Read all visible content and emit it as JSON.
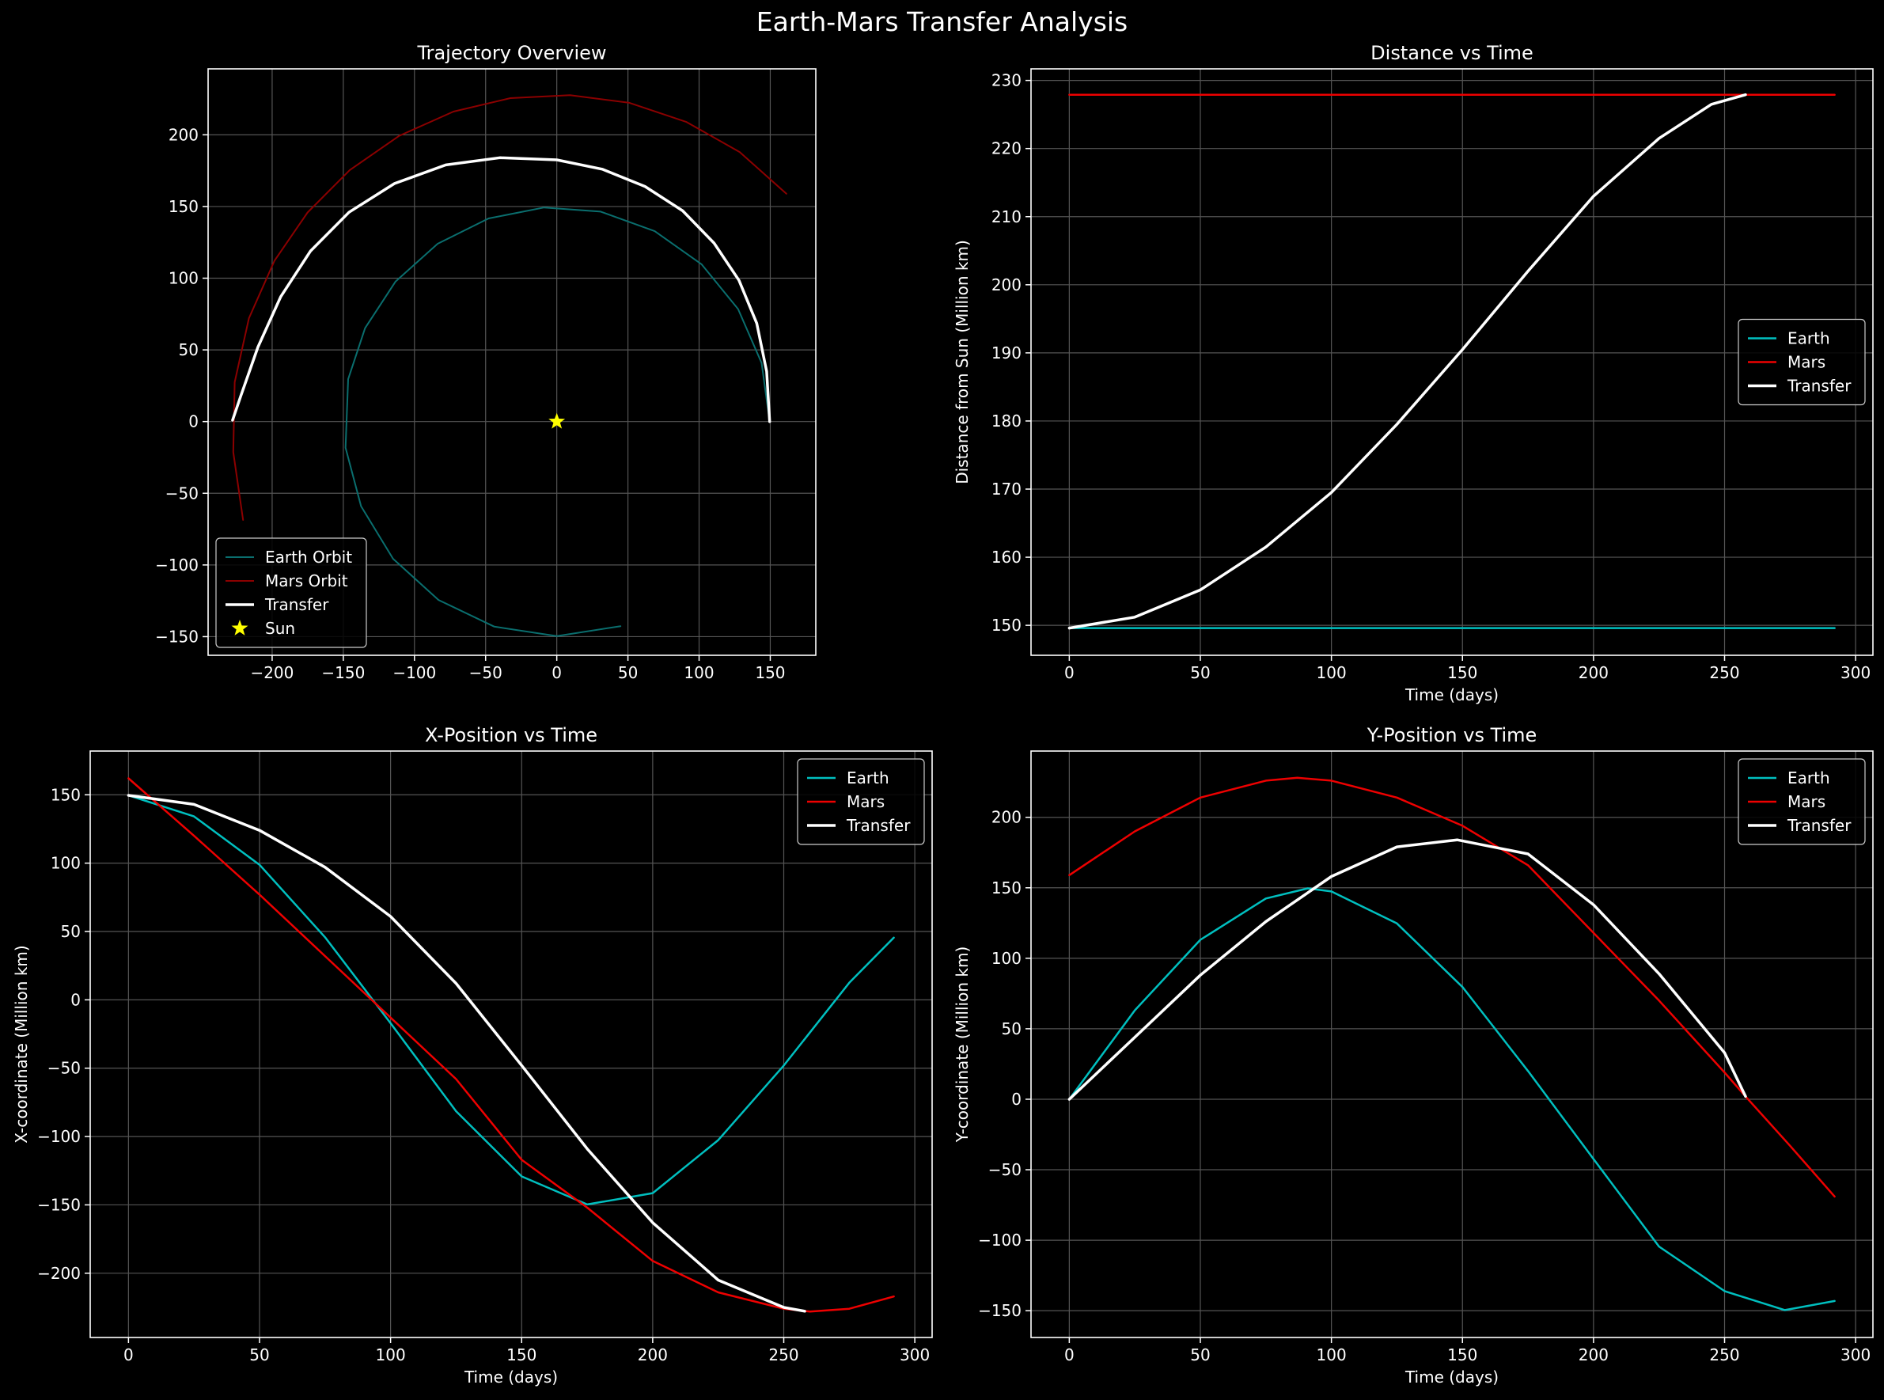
{
  "figure_title": "Earth-Mars Transfer Analysis",
  "colors": {
    "background": "#000000",
    "earth": "#00bfbf",
    "mars": "#ee0000",
    "transfer": "#ffffff",
    "sun": "#ffff00",
    "grid": "#555555"
  },
  "chart_data": [
    {
      "id": "trajectory",
      "type": "line",
      "title": "Trajectory Overview",
      "xlabel": "",
      "ylabel": "",
      "xlim": [
        -245,
        182
      ],
      "ylim": [
        -163,
        246
      ],
      "xticks": [
        -200,
        -150,
        -100,
        -50,
        0,
        50,
        100,
        150
      ],
      "yticks": [
        -150,
        -100,
        -50,
        0,
        50,
        100,
        150,
        200
      ],
      "grid": true,
      "legend_position": "lower-left",
      "series": [
        {
          "name": "Earth Orbit",
          "color": "#0a6e6e",
          "width": 2,
          "points": [
            [
              149.6,
              0
            ],
            [
              143.9,
              40.9
            ],
            [
              127.4,
              78.5
            ],
            [
              101.8,
              109.6
            ],
            [
              68.8,
              132.8
            ],
            [
              30.8,
              146.4
            ],
            [
              -8.9,
              149.3
            ],
            [
              -47.9,
              141.7
            ],
            [
              -83.7,
              124.0
            ],
            [
              -113.3,
              97.7
            ],
            [
              -134.7,
              65.2
            ],
            [
              -146.6,
              29.6
            ],
            [
              -148.4,
              -18.2
            ],
            [
              -137.5,
              -59.0
            ],
            [
              -115.0,
              -95.7
            ],
            [
              -83.1,
              -124.4
            ],
            [
              -43.9,
              -143.0
            ],
            [
              0,
              -149.6
            ],
            [
              44.8,
              -142.7
            ]
          ]
        },
        {
          "name": "Mars Orbit",
          "color": "#8b0000",
          "width": 2,
          "points": [
            [
              161.3,
              158.9
            ],
            [
              128.5,
              188.0
            ],
            [
              91.2,
              208.9
            ],
            [
              51.0,
              222.3
            ],
            [
              9.3,
              227.7
            ],
            [
              -32.6,
              225.6
            ],
            [
              -72.6,
              216.2
            ],
            [
              -110.7,
              199.3
            ],
            [
              -145.5,
              175.4
            ],
            [
              -175.1,
              145.8
            ],
            [
              -198.4,
              112.1
            ],
            [
              -216.3,
              72.1
            ],
            [
              -226.3,
              27.5
            ],
            [
              -227.3,
              -21.3
            ],
            [
              -220.4,
              -68.6
            ]
          ]
        },
        {
          "name": "Transfer",
          "color": "#ffffff",
          "width": 3.5,
          "points": [
            [
              149.6,
              0
            ],
            [
              147.5,
              35.0
            ],
            [
              140.5,
              68.5
            ],
            [
              128.0,
              98.5
            ],
            [
              110.5,
              124.5
            ],
            [
              88.5,
              147.0
            ],
            [
              62.0,
              164.0
            ],
            [
              32.0,
              176.0
            ],
            [
              0,
              182.5
            ],
            [
              -40.0,
              184.0
            ],
            [
              -78.0,
              179.0
            ],
            [
              -114.0,
              166.0
            ],
            [
              -146.0,
              146.0
            ],
            [
              -173.0,
              119.0
            ],
            [
              -194.0,
              87.0
            ],
            [
              -210.0,
              52.0
            ],
            [
              -222.0,
              18.0
            ],
            [
              -227.8,
              1.0
            ]
          ]
        },
        {
          "name": "Sun",
          "type": "marker",
          "color": "#ffff00",
          "points": [
            [
              0,
              0
            ]
          ]
        }
      ]
    },
    {
      "id": "distance",
      "type": "line",
      "title": "Distance vs Time",
      "xlabel": "Time (days)",
      "ylabel": "Distance from Sun (Million km)",
      "xlim": [
        -14.6,
        306.6
      ],
      "ylim": [
        145.6,
        231.7
      ],
      "xticks": [
        0,
        50,
        100,
        150,
        200,
        250,
        300
      ],
      "yticks": [
        150,
        160,
        170,
        180,
        190,
        200,
        210,
        220,
        230
      ],
      "grid": true,
      "legend_position": "center-right",
      "series": [
        {
          "name": "Earth",
          "color": "#00bfbf",
          "width": 2.5,
          "points": [
            [
              0,
              149.6
            ],
            [
              292,
              149.6
            ]
          ]
        },
        {
          "name": "Mars",
          "color": "#ee0000",
          "width": 2.5,
          "points": [
            [
              0,
              227.9
            ],
            [
              292,
              227.9
            ]
          ]
        },
        {
          "name": "Transfer",
          "color": "#ffffff",
          "width": 3.5,
          "points": [
            [
              0,
              149.6
            ],
            [
              25,
              151.2
            ],
            [
              50,
              155.2
            ],
            [
              75,
              161.5
            ],
            [
              100,
              169.5
            ],
            [
              125,
              179.5
            ],
            [
              150,
              190.5
            ],
            [
              175,
              202.0
            ],
            [
              200,
              213.0
            ],
            [
              225,
              221.5
            ],
            [
              245,
              226.5
            ],
            [
              258,
              227.9
            ]
          ]
        }
      ]
    },
    {
      "id": "x_position",
      "type": "line",
      "title": "X-Position vs Time",
      "xlabel": "Time (days)",
      "ylabel": "X-coordinate (Million km)",
      "xlim": [
        -14.6,
        306.6
      ],
      "ylim": [
        -247,
        182
      ],
      "xticks": [
        0,
        50,
        100,
        150,
        200,
        250,
        300
      ],
      "yticks": [
        -200,
        -150,
        -100,
        -50,
        0,
        50,
        100,
        150
      ],
      "grid": true,
      "legend_position": "top-right",
      "series": [
        {
          "name": "Earth",
          "color": "#00bfbf",
          "width": 2.5,
          "points": [
            [
              0,
              149.6
            ],
            [
              25,
              134.2
            ],
            [
              50,
              98.8
            ],
            [
              75,
              45.8
            ],
            [
              100,
              -17.1
            ],
            [
              125,
              -81.5
            ],
            [
              150,
              -129.2
            ],
            [
              175,
              -149.7
            ],
            [
              200,
              -141.4
            ],
            [
              225,
              -102.6
            ],
            [
              250,
              -48.1
            ],
            [
              275,
              12.5
            ],
            [
              292,
              45.5
            ]
          ]
        },
        {
          "name": "Mars",
          "color": "#ee0000",
          "width": 2.5,
          "points": [
            [
              0,
              162
            ],
            [
              25,
              120
            ],
            [
              50,
              77
            ],
            [
              75,
              32
            ],
            [
              100,
              -13
            ],
            [
              125,
              -58
            ],
            [
              150,
              -117
            ],
            [
              175,
              -152
            ],
            [
              200,
              -191
            ],
            [
              225,
              -214
            ],
            [
              250,
              -226
            ],
            [
              260,
              -228
            ],
            [
              275,
              -226
            ],
            [
              292,
              -217
            ]
          ]
        },
        {
          "name": "Transfer",
          "color": "#ffffff",
          "width": 3.5,
          "points": [
            [
              0,
              149.6
            ],
            [
              25,
              143
            ],
            [
              50,
              124
            ],
            [
              75,
              97
            ],
            [
              100,
              61
            ],
            [
              125,
              12
            ],
            [
              150,
              -48
            ],
            [
              175,
              -109
            ],
            [
              200,
              -163
            ],
            [
              225,
              -205
            ],
            [
              250,
              -225
            ],
            [
              258,
              -227.8
            ]
          ]
        }
      ]
    },
    {
      "id": "y_position",
      "type": "line",
      "title": "Y-Position vs Time",
      "xlabel": "Time (days)",
      "ylabel": "Y-coordinate (Million km)",
      "xlim": [
        -14.6,
        306.6
      ],
      "ylim": [
        -169,
        247
      ],
      "xticks": [
        0,
        50,
        100,
        150,
        200,
        250,
        300
      ],
      "yticks": [
        -150,
        -100,
        -50,
        0,
        50,
        100,
        150,
        200
      ],
      "grid": true,
      "legend_position": "top-right",
      "series": [
        {
          "name": "Earth",
          "color": "#00bfbf",
          "width": 2.5,
          "points": [
            [
              0,
              0
            ],
            [
              25,
              63.1
            ],
            [
              50,
              113.1
            ],
            [
              75,
              142.4
            ],
            [
              91,
              149.6
            ],
            [
              100,
              147.4
            ],
            [
              125,
              124.7
            ],
            [
              150,
              79.6
            ],
            [
              175,
              20.0
            ],
            [
              200,
              -42.4
            ],
            [
              225,
              -104.5
            ],
            [
              250,
              -136.1
            ],
            [
              273,
              -149.6
            ],
            [
              292,
              -143.1
            ]
          ]
        },
        {
          "name": "Mars",
          "color": "#ee0000",
          "width": 2.5,
          "points": [
            [
              0,
              159
            ],
            [
              25,
              190
            ],
            [
              50,
              214
            ],
            [
              75,
              226
            ],
            [
              87,
              228
            ],
            [
              100,
              226
            ],
            [
              125,
              214
            ],
            [
              150,
              194
            ],
            [
              175,
              166
            ],
            [
              200,
              118
            ],
            [
              225,
              70
            ],
            [
              250,
              19
            ],
            [
              258,
              2
            ],
            [
              275,
              -33
            ],
            [
              292,
              -69
            ]
          ]
        },
        {
          "name": "Transfer",
          "color": "#ffffff",
          "width": 3.5,
          "points": [
            [
              0,
              0
            ],
            [
              25,
              44
            ],
            [
              50,
              88
            ],
            [
              75,
              126
            ],
            [
              100,
              158
            ],
            [
              125,
              179
            ],
            [
              148,
              184
            ],
            [
              175,
              174
            ],
            [
              200,
              138
            ],
            [
              225,
              89
            ],
            [
              250,
              33
            ],
            [
              258,
              2
            ]
          ]
        }
      ]
    }
  ]
}
